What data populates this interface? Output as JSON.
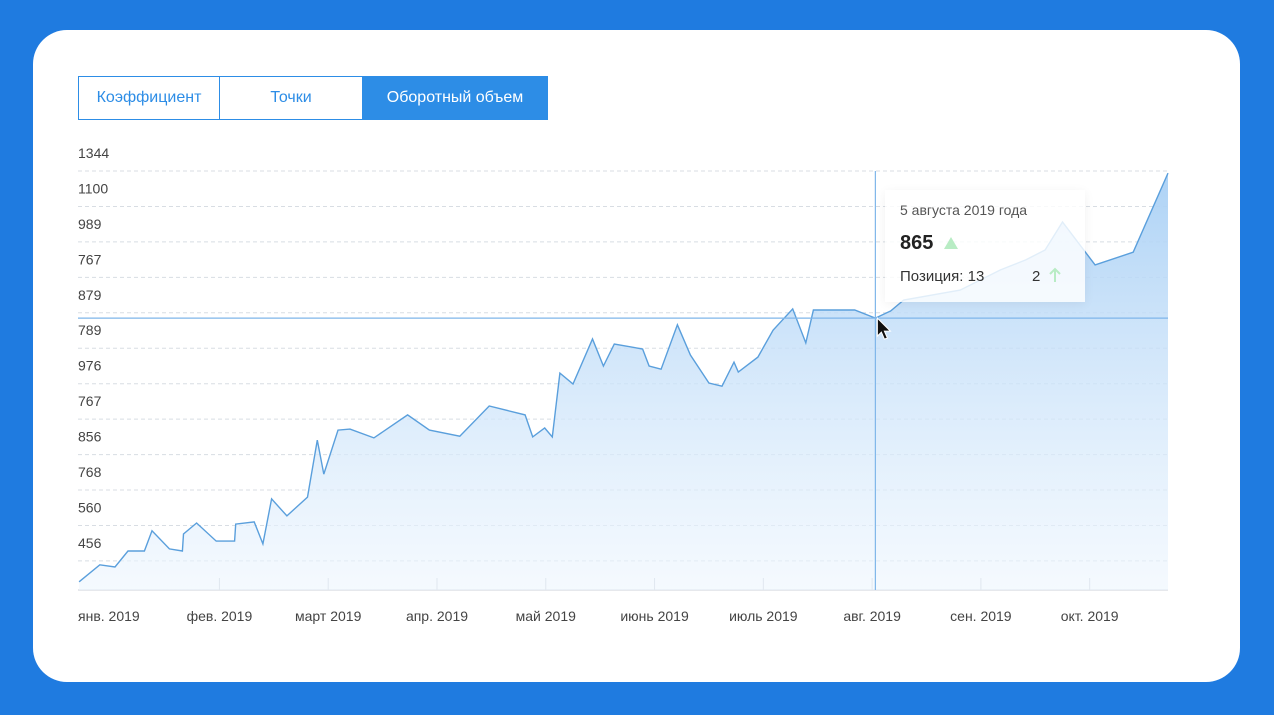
{
  "tabs": [
    "Коэффициент",
    "Точки",
    "Оборотный объем"
  ],
  "tooltip": {
    "date": "5 августа 2019 года",
    "value": "865",
    "position": "Позиция: 13",
    "change": "2"
  },
  "chart_data": {
    "type": "area",
    "color": "#5a9fdc",
    "grid": true,
    "xlim": [
      -0.3,
      9.72
    ],
    "ylim": [
      0.18,
      12
    ],
    "xticks": [
      {
        "value": 0,
        "label": "янв. 2019"
      },
      {
        "value": 1,
        "label": "фев. 2019"
      },
      {
        "value": 2,
        "label": "март 2019"
      },
      {
        "value": 3,
        "label": "апр. 2019"
      },
      {
        "value": 4,
        "label": "май 2019"
      },
      {
        "value": 5,
        "label": "июнь 2019"
      },
      {
        "value": 6,
        "label": "июль 2019"
      },
      {
        "value": 7,
        "label": "авг. 2019"
      },
      {
        "value": 8,
        "label": "сен. 2019"
      },
      {
        "value": 9,
        "label": "окт. 2019"
      }
    ],
    "yticks": [
      {
        "value": 12,
        "label": "1344"
      },
      {
        "value": 11,
        "label": "1100"
      },
      {
        "value": 10,
        "label": "989"
      },
      {
        "value": 9,
        "label": "767"
      },
      {
        "value": 8,
        "label": "879"
      },
      {
        "value": 7,
        "label": "789"
      },
      {
        "value": 6,
        "label": "976"
      },
      {
        "value": 5,
        "label": "767"
      },
      {
        "value": 4,
        "label": "856"
      },
      {
        "value": 3,
        "label": "768"
      },
      {
        "value": 2,
        "label": "560"
      },
      {
        "value": 1,
        "label": "456"
      }
    ],
    "x": [
      -0.29,
      -0.1,
      0.04,
      0.16,
      0.31,
      0.38,
      0.54,
      0.66,
      0.67,
      0.79,
      0.97,
      1.14,
      1.15,
      1.32,
      1.4,
      1.48,
      1.62,
      1.81,
      1.9,
      1.96,
      2.09,
      2.2,
      2.42,
      2.73,
      2.93,
      3.21,
      3.48,
      3.81,
      3.88,
      3.99,
      4.06,
      4.13,
      4.25,
      4.43,
      4.53,
      4.63,
      4.89,
      4.95,
      5.06,
      5.21,
      5.33,
      5.5,
      5.62,
      5.73,
      5.77,
      5.95,
      6.09,
      6.27,
      6.39,
      6.46,
      6.84,
      7.03,
      7.17,
      7.29,
      7.81,
      8.18,
      8.41,
      8.59,
      8.75,
      9.05,
      9.4,
      9.72
    ],
    "values": [
      0.41,
      0.89,
      0.83,
      1.28,
      1.28,
      1.85,
      1.34,
      1.28,
      1.76,
      2.07,
      1.56,
      1.56,
      2.04,
      2.1,
      1.48,
      2.75,
      2.27,
      2.8,
      4.41,
      3.45,
      4.69,
      4.72,
      4.47,
      5.12,
      4.69,
      4.52,
      5.37,
      5.12,
      4.5,
      4.75,
      4.5,
      6.3,
      5.99,
      7.26,
      6.5,
      7.12,
      6.98,
      6.5,
      6.41,
      7.66,
      6.81,
      6.02,
      5.93,
      6.61,
      6.33,
      6.75,
      7.51,
      8.11,
      7.15,
      8.08,
      8.08,
      7.85,
      8.05,
      8.36,
      8.64,
      9.21,
      9.49,
      9.77,
      10.56,
      9.35,
      9.71,
      11.94
    ]
  }
}
